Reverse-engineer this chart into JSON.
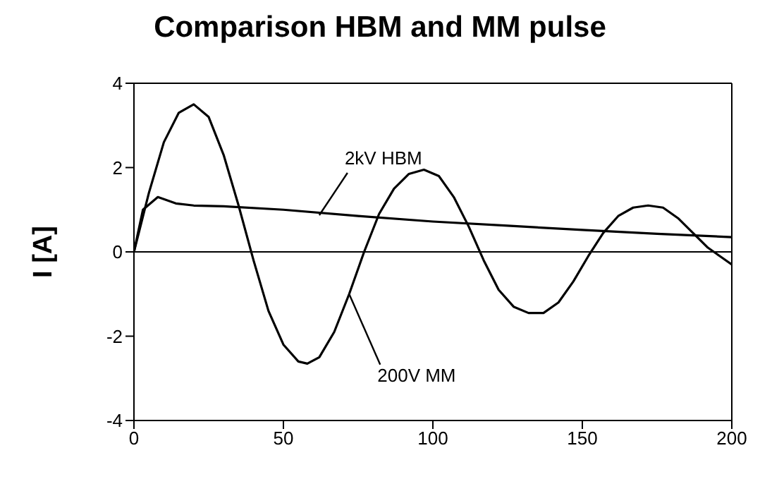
{
  "chart_data": {
    "type": "line",
    "title": "Comparison HBM and MM pulse",
    "ylabel": "I  [A]",
    "xlim": [
      0,
      200
    ],
    "xticks": [
      0,
      50,
      100,
      150,
      200
    ],
    "ylim": [
      -4,
      4
    ],
    "yticks": [
      -4,
      -2,
      0,
      2,
      4
    ],
    "marker": "none",
    "line_style": "solid",
    "ref_lines": [
      {
        "axis": "y",
        "value": 0,
        "color": "#000000"
      }
    ],
    "annotations": [
      {
        "text": "2kV HBM",
        "x": 62,
        "y": 0.87
      },
      {
        "text": "200V MM",
        "x": 72,
        "y": -1.0
      }
    ],
    "series": [
      {
        "color": "#000000",
        "x": [
          0,
          3,
          8,
          14,
          20,
          30,
          50,
          75,
          100,
          125,
          150,
          175,
          200
        ],
        "values": [
          0,
          1.0,
          1.3,
          1.15,
          1.1,
          1.08,
          1.0,
          0.85,
          0.72,
          0.62,
          0.52,
          0.43,
          0.35
        ]
      },
      {
        "color": "#000000",
        "x": [
          0,
          5,
          10,
          15,
          20,
          25,
          30,
          35,
          40,
          45,
          50,
          55,
          58,
          62,
          67,
          72,
          77,
          82,
          87,
          92,
          97,
          102,
          107,
          112,
          117,
          122,
          127,
          132,
          137,
          142,
          147,
          152,
          157,
          162,
          167,
          172,
          177,
          182,
          187,
          192,
          196,
          200
        ],
        "values": [
          0,
          1.4,
          2.6,
          3.3,
          3.5,
          3.2,
          2.3,
          1.1,
          -0.2,
          -1.4,
          -2.2,
          -2.6,
          -2.65,
          -2.5,
          -1.9,
          -1.0,
          0,
          0.9,
          1.5,
          1.85,
          1.95,
          1.8,
          1.3,
          0.6,
          -0.2,
          -0.9,
          -1.3,
          -1.45,
          -1.45,
          -1.2,
          -0.7,
          -0.1,
          0.45,
          0.85,
          1.05,
          1.1,
          1.05,
          0.8,
          0.45,
          0.1,
          -0.1,
          -0.3
        ]
      }
    ]
  }
}
